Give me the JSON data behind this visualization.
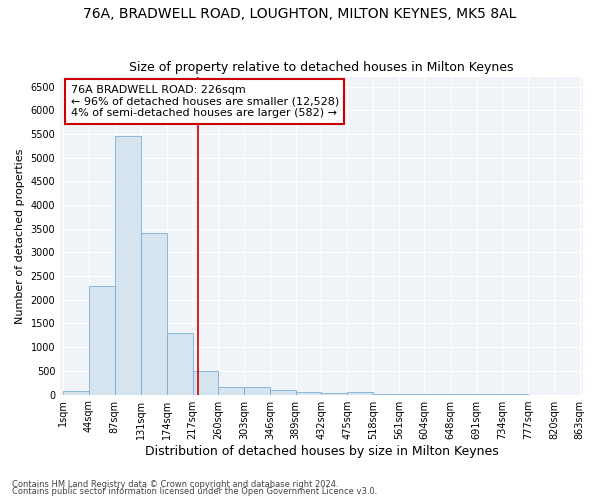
{
  "title1": "76A, BRADWELL ROAD, LOUGHTON, MILTON KEYNES, MK5 8AL",
  "title2": "Size of property relative to detached houses in Milton Keynes",
  "xlabel": "Distribution of detached houses by size in Milton Keynes",
  "ylabel": "Number of detached properties",
  "bin_edges": [
    1,
    44,
    87,
    131,
    174,
    217,
    260,
    303,
    346,
    389,
    432,
    475,
    518,
    561,
    604,
    648,
    691,
    734,
    777,
    820,
    863
  ],
  "bar_heights": [
    80,
    2300,
    5450,
    3400,
    1300,
    490,
    170,
    150,
    90,
    60,
    40,
    60,
    20,
    10,
    5,
    3,
    2,
    2,
    1,
    1
  ],
  "bar_color": "#d6e4f0",
  "bar_edge_color": "#7aaed4",
  "property_size": 226,
  "vline_color": "#cc0000",
  "annotation_text": "76A BRADWELL ROAD: 226sqm\n← 96% of detached houses are smaller (12,528)\n4% of semi-detached houses are larger (582) →",
  "annotation_box_color": "#ffffff",
  "annotation_box_edge": "#cc0000",
  "ylim": [
    0,
    6700
  ],
  "yticks": [
    0,
    500,
    1000,
    1500,
    2000,
    2500,
    3000,
    3500,
    4000,
    4500,
    5000,
    5500,
    6000,
    6500
  ],
  "footer_line1": "Contains HM Land Registry data © Crown copyright and database right 2024.",
  "footer_line2": "Contains public sector information licensed under the Open Government Licence v3.0.",
  "bg_color": "#ffffff",
  "plot_bg_color": "#f0f4f8",
  "grid_color": "#ffffff",
  "title1_fontsize": 10,
  "title2_fontsize": 9,
  "xlabel_fontsize": 9,
  "ylabel_fontsize": 8,
  "tick_fontsize": 7,
  "annotation_fontsize": 8,
  "footer_fontsize": 6
}
